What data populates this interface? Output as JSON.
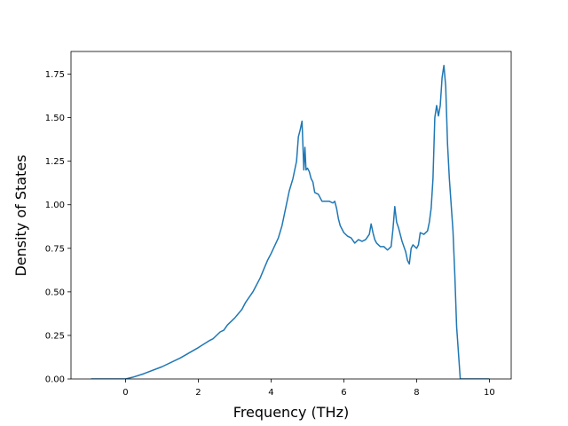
{
  "chart_data": {
    "type": "line",
    "title": "",
    "xlabel": "Frequency (THz)",
    "ylabel": "Density of States",
    "xlim": [
      -1.5,
      10.6
    ],
    "ylim": [
      0,
      1.88
    ],
    "xticks": [
      0,
      2,
      4,
      6,
      8,
      10
    ],
    "yticks": [
      0.0,
      0.25,
      0.5,
      0.75,
      1.0,
      1.25,
      1.5,
      1.75
    ],
    "xtick_labels": [
      "0",
      "2",
      "4",
      "6",
      "8",
      "10"
    ],
    "ytick_labels": [
      "0.00",
      "0.25",
      "0.50",
      "0.75",
      "1.00",
      "1.25",
      "1.50",
      "1.75"
    ],
    "grid": false,
    "series": [
      {
        "color": "#1f77b4",
        "x": [
          -0.95,
          0.0,
          0.2,
          0.5,
          1.0,
          1.5,
          2.0,
          2.3,
          2.4,
          2.6,
          2.7,
          2.8,
          3.0,
          3.2,
          3.3,
          3.5,
          3.7,
          3.8,
          3.9,
          4.0,
          4.2,
          4.3,
          4.4,
          4.5,
          4.6,
          4.7,
          4.75,
          4.8,
          4.85,
          4.9,
          4.93,
          4.96,
          5.0,
          5.05,
          5.1,
          5.15,
          5.2,
          5.3,
          5.4,
          5.5,
          5.6,
          5.7,
          5.75,
          5.8,
          5.85,
          5.9,
          6.0,
          6.1,
          6.2,
          6.3,
          6.4,
          6.5,
          6.6,
          6.7,
          6.75,
          6.8,
          6.85,
          6.9,
          7.0,
          7.1,
          7.2,
          7.3,
          7.35,
          7.4,
          7.45,
          7.5,
          7.6,
          7.7,
          7.75,
          7.8,
          7.85,
          7.9,
          8.0,
          8.05,
          8.1,
          8.2,
          8.3,
          8.35,
          8.4,
          8.45,
          8.5,
          8.55,
          8.6,
          8.65,
          8.7,
          8.75,
          8.8,
          8.85,
          8.9,
          9.0,
          9.05,
          9.1,
          9.2,
          10.0
        ],
        "y": [
          0.0,
          0.0,
          0.01,
          0.03,
          0.07,
          0.12,
          0.18,
          0.22,
          0.23,
          0.27,
          0.28,
          0.31,
          0.35,
          0.4,
          0.44,
          0.5,
          0.58,
          0.63,
          0.68,
          0.72,
          0.81,
          0.88,
          0.98,
          1.08,
          1.15,
          1.25,
          1.39,
          1.43,
          1.48,
          1.2,
          1.33,
          1.2,
          1.21,
          1.19,
          1.15,
          1.13,
          1.07,
          1.06,
          1.02,
          1.02,
          1.02,
          1.01,
          1.02,
          0.98,
          0.92,
          0.88,
          0.84,
          0.82,
          0.81,
          0.78,
          0.8,
          0.79,
          0.8,
          0.83,
          0.89,
          0.84,
          0.8,
          0.78,
          0.76,
          0.76,
          0.74,
          0.76,
          0.86,
          0.99,
          0.9,
          0.87,
          0.79,
          0.73,
          0.68,
          0.66,
          0.75,
          0.77,
          0.75,
          0.77,
          0.84,
          0.83,
          0.85,
          0.9,
          0.98,
          1.15,
          1.5,
          1.57,
          1.51,
          1.57,
          1.73,
          1.8,
          1.68,
          1.35,
          1.15,
          0.85,
          0.6,
          0.3,
          0.0,
          0.0
        ]
      }
    ]
  }
}
